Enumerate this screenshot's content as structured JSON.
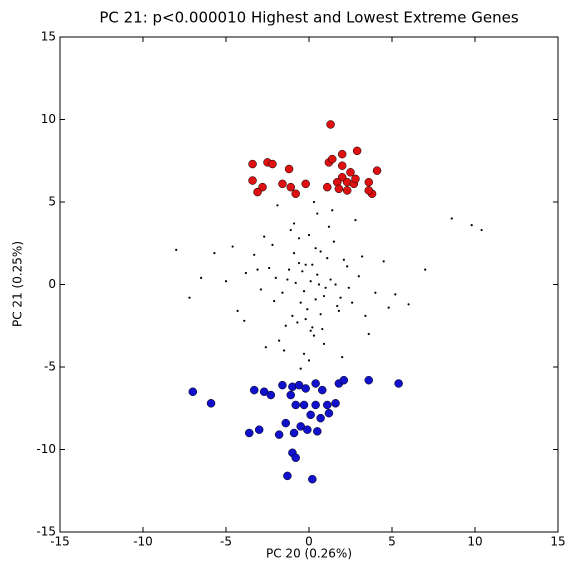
{
  "chart_data": {
    "type": "scatter",
    "title": "PC 21: p<0.000010 Highest and Lowest Extreme Genes",
    "x_label": "PC 20 (0.26%)",
    "y_label": "PC 21 (0.25%)",
    "xlim": [
      -15,
      15
    ],
    "ylim": [
      -15,
      15
    ],
    "xticks": [
      -15,
      -10,
      -5,
      0,
      5,
      10,
      15
    ],
    "yticks": [
      -15,
      -10,
      -5,
      0,
      5,
      10,
      15
    ],
    "series": [
      {
        "color": "#000000",
        "size": 1.1,
        "x": [
          0.1,
          -0.3,
          0.5,
          -0.8,
          0.9,
          -1.2,
          1.3,
          -0.5,
          0.2,
          -1.6,
          1.7,
          -2.0,
          2.1,
          0.7,
          -0.9,
          0.4,
          -0.2,
          1.0,
          -1.4,
          1.5,
          -2.4,
          2.6,
          -2.9,
          3.0,
          -3.3,
          3.4,
          0.0,
          0.3,
          -0.6,
          0.8,
          -1.1,
          1.2,
          -1.8,
          1.9,
          -2.2,
          2.3,
          -0.1,
          0.6,
          -0.4,
          1.1,
          -0.7,
          0.2,
          -3.8,
          4.0,
          -4.3,
          4.5,
          -5.0,
          5.2,
          -5.7,
          6.0,
          -6.5,
          7.0,
          8.6,
          9.8,
          10.4,
          -8.0,
          -7.2,
          0.5,
          -0.3,
          1.4,
          -1.5,
          2.8,
          -2.6,
          0.9,
          -0.9,
          0.0,
          -1.9,
          2.0,
          -2.7,
          3.6,
          -3.9,
          1.6,
          -1.3,
          0.4,
          -0.6,
          2.4,
          -2.1,
          3.2,
          -3.1,
          0.1,
          0.7,
          -0.2,
          1.8,
          -1.0,
          4.8,
          -4.6,
          0.3,
          -0.5
        ],
        "y": [
          0.2,
          -0.4,
          0.6,
          0.1,
          -0.7,
          0.9,
          0.3,
          -1.1,
          1.2,
          -0.5,
          -1.3,
          0.4,
          1.5,
          -1.8,
          1.9,
          2.2,
          -2.1,
          -0.2,
          -2.5,
          2.6,
          1.0,
          -1.1,
          -0.3,
          0.5,
          1.8,
          -1.9,
          3.0,
          -3.1,
          2.8,
          -2.7,
          3.3,
          3.5,
          -3.4,
          -0.8,
          2.4,
          1.1,
          -1.5,
          0.0,
          0.8,
          1.6,
          -2.3,
          -2.6,
          0.7,
          -0.5,
          -1.6,
          1.4,
          0.2,
          -0.6,
          1.9,
          -1.2,
          0.4,
          0.9,
          4.0,
          3.6,
          3.3,
          2.1,
          -0.8,
          4.3,
          -4.2,
          4.5,
          -4.0,
          3.9,
          -3.8,
          -3.6,
          3.7,
          -4.6,
          4.8,
          -4.4,
          2.9,
          -3.0,
          -2.2,
          0.0,
          0.3,
          -0.9,
          1.3,
          -0.2,
          -1.0,
          1.7,
          0.9,
          -2.8,
          2.0,
          1.2,
          -1.6,
          -1.9,
          -1.4,
          2.3,
          5.0,
          -5.1
        ]
      },
      {
        "color": "#dd1111",
        "size": 4,
        "x": [
          1.3,
          -3.4,
          -2.5,
          -2.2,
          -1.2,
          -3.4,
          -2.8,
          -3.1,
          -1.6,
          -1.1,
          -0.8,
          -0.2,
          1.2,
          1.4,
          2.0,
          2.9,
          2.0,
          4.1,
          2.5,
          2.0,
          2.3,
          2.7,
          1.7,
          1.1,
          1.8,
          3.6,
          3.8,
          3.6,
          2.3,
          2.8
        ],
        "y": [
          9.7,
          7.3,
          7.4,
          7.3,
          7.0,
          6.3,
          5.9,
          5.6,
          6.1,
          5.9,
          5.5,
          6.1,
          7.4,
          7.6,
          7.9,
          8.1,
          7.2,
          6.9,
          6.8,
          6.5,
          6.2,
          6.1,
          6.2,
          5.9,
          5.8,
          6.2,
          5.5,
          5.7,
          5.7,
          6.4
        ]
      },
      {
        "color": "#1111cc",
        "size": 4,
        "x": [
          -7.0,
          -5.9,
          -3.3,
          -2.7,
          -1.6,
          -1.0,
          -0.6,
          -0.2,
          0.4,
          0.8,
          1.8,
          2.1,
          3.6,
          5.4,
          -2.3,
          -1.1,
          -0.3,
          0.4,
          1.1,
          1.6,
          1.2,
          -0.8,
          -1.4,
          -0.5,
          -0.1,
          0.5,
          -0.9,
          -1.8,
          -3.0,
          -3.6,
          -1.0,
          -0.8,
          -1.3,
          0.2,
          0.1,
          0.7
        ],
        "y": [
          -6.5,
          -7.2,
          -6.4,
          -6.5,
          -6.1,
          -6.2,
          -6.1,
          -6.3,
          -6.0,
          -6.4,
          -6.0,
          -5.8,
          -5.8,
          -6.0,
          -6.7,
          -6.7,
          -7.3,
          -7.3,
          -7.3,
          -7.2,
          -7.8,
          -7.3,
          -8.4,
          -8.6,
          -8.8,
          -8.9,
          -9.0,
          -9.1,
          -8.8,
          -9.0,
          -10.2,
          -10.5,
          -11.6,
          -11.8,
          -7.9,
          -8.1
        ]
      }
    ]
  }
}
